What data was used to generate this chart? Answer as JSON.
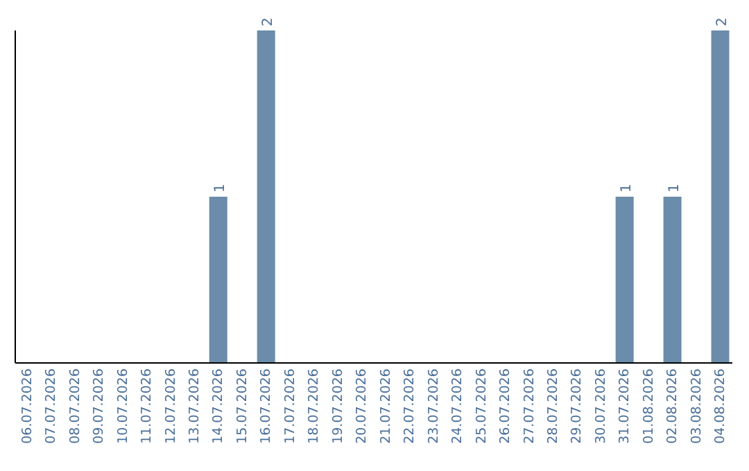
{
  "chart_data": {
    "type": "bar",
    "categories": [
      "06.07.2026",
      "07.07.2026",
      "08.07.2026",
      "09.07.2026",
      "10.07.2026",
      "11.07.2026",
      "12.07.2026",
      "13.07.2026",
      "14.07.2026",
      "15.07.2026",
      "16.07.2026",
      "17.07.2026",
      "18.07.2026",
      "19.07.2026",
      "20.07.2026",
      "21.07.2026",
      "22.07.2026",
      "23.07.2026",
      "24.07.2026",
      "25.07.2026",
      "26.07.2026",
      "27.07.2026",
      "28.07.2026",
      "29.07.2026",
      "30.07.2026",
      "31.07.2026",
      "01.08.2026",
      "02.08.2026",
      "03.08.2026",
      "04.08.2026"
    ],
    "values": [
      0,
      0,
      0,
      0,
      0,
      0,
      0,
      0,
      1,
      0,
      2,
      0,
      0,
      0,
      0,
      0,
      0,
      0,
      0,
      0,
      0,
      0,
      0,
      0,
      0,
      1,
      0,
      1,
      0,
      2
    ],
    "value_labels": [
      null,
      null,
      null,
      null,
      null,
      null,
      null,
      null,
      "1",
      null,
      "2",
      null,
      null,
      null,
      null,
      null,
      null,
      null,
      null,
      null,
      null,
      null,
      null,
      null,
      null,
      "1",
      null,
      "1",
      null,
      "2"
    ],
    "color": "#6b8caa",
    "tick_labels": "x"
  }
}
